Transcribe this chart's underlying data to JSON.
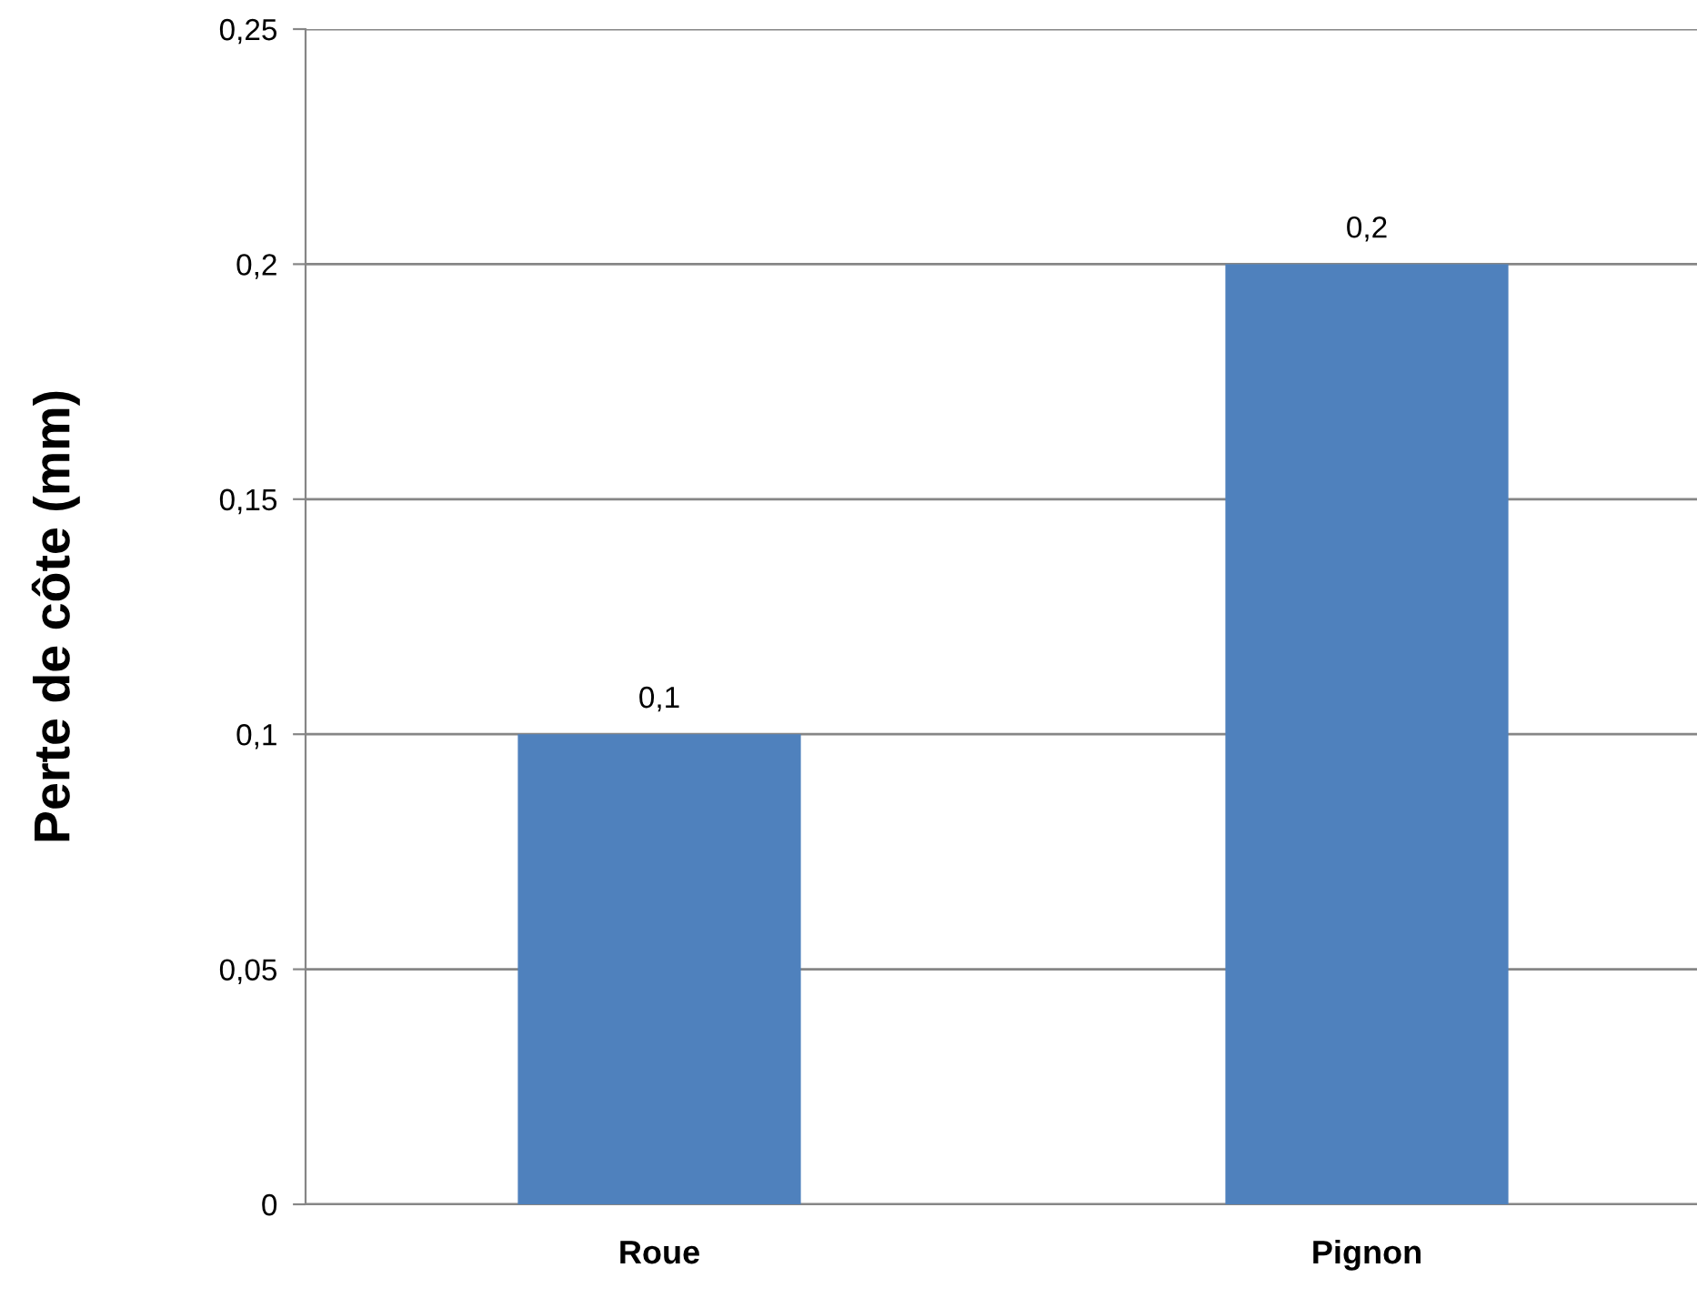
{
  "chart_data": {
    "type": "bar",
    "ylabel": "Perte de côte (mm)",
    "categories": [
      "Roue",
      "Pignon"
    ],
    "values": [
      0.1,
      0.2
    ],
    "color": "#4f81bd",
    "value_labels": [
      "0,1",
      "0,2"
    ],
    "ylim": [
      0,
      0.25
    ],
    "yticks": [
      0,
      {
        "value": 0.05,
        "label": "0,05"
      },
      {
        "value": 0.1,
        "label": "0,1"
      },
      {
        "value": 0.15,
        "label": "0,15"
      },
      {
        "value": 0.2,
        "label": "0,2"
      },
      {
        "value": 0.25,
        "label": "0,25"
      }
    ],
    "grid": "y",
    "legend": false
  }
}
